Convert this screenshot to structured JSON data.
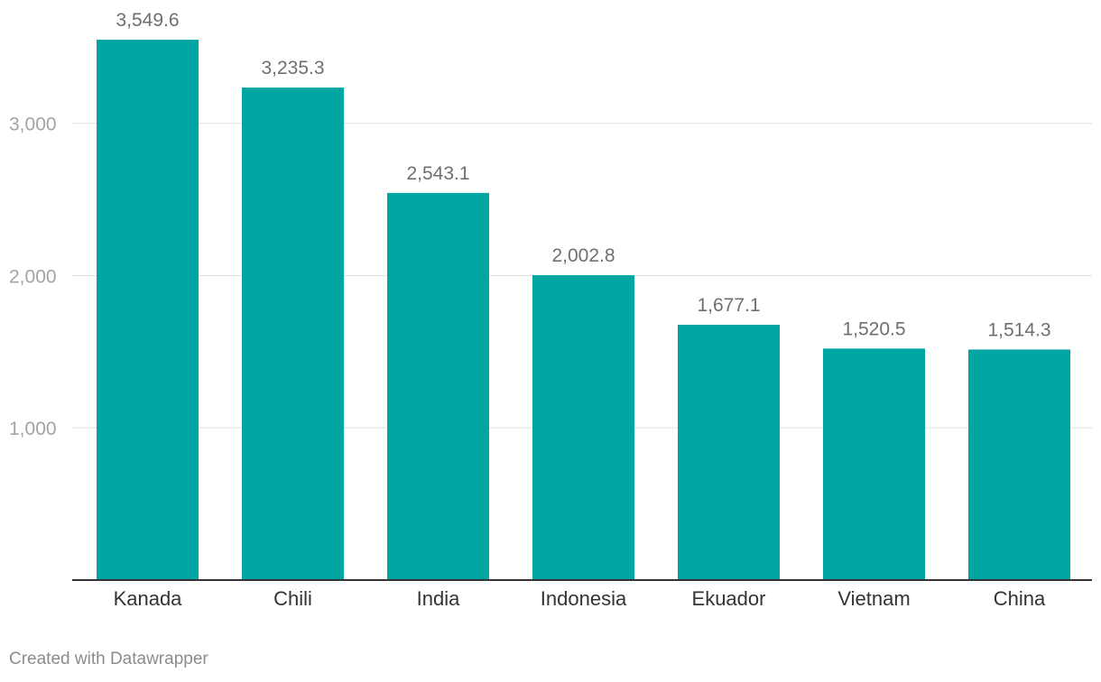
{
  "chart_data": {
    "type": "bar",
    "categories": [
      "Kanada",
      "Chili",
      "India",
      "Indonesia",
      "Ekuador",
      "Vietnam",
      "China"
    ],
    "values": [
      3549.6,
      3235.3,
      2543.1,
      2002.8,
      1677.1,
      1520.5,
      1514.3
    ],
    "value_labels": [
      "3,549.6",
      "3,235.3",
      "2,543.1",
      "2,002.8",
      "1,677.1",
      "1,520.5",
      "1,514.3"
    ],
    "y_ticks": [
      1000,
      2000,
      3000
    ],
    "y_tick_labels": [
      "1,000",
      "2,000",
      "3,000"
    ],
    "ylim": [
      0,
      3549.6
    ],
    "title": "",
    "xlabel": "",
    "ylabel": "",
    "grid": true,
    "bar_color": "#00a6a2"
  },
  "footer": {
    "credit": "Created with Datawrapper"
  }
}
